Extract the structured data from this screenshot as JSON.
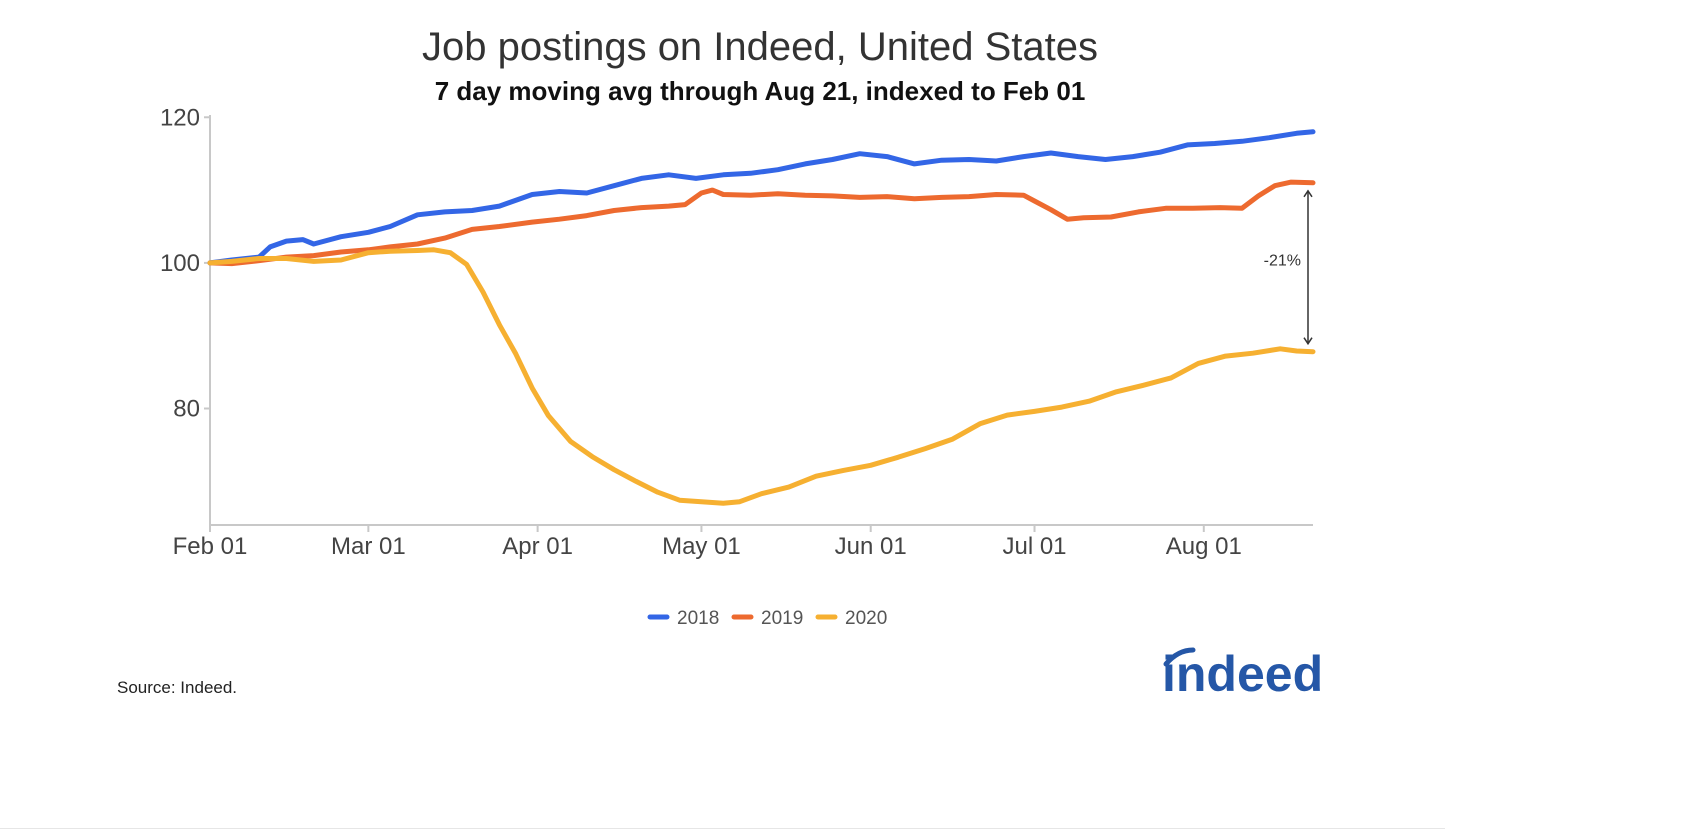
{
  "chart_data": {
    "type": "line",
    "title": "Job postings on Indeed, United States",
    "subtitle": "7 day moving avg through Aug 21, indexed to Feb 01",
    "x_ticks": [
      "Feb 01",
      "Mar 01",
      "Apr 01",
      "May 01",
      "Jun 01",
      "Jul 01",
      "Aug 01"
    ],
    "y_ticks": [
      "120",
      "100",
      "80"
    ],
    "xlim": [
      "Feb 01",
      "Aug 21"
    ],
    "ylim": [
      64,
      121
    ],
    "grid": false,
    "legend_position": "bottom-center",
    "annotation": {
      "text": "-21%",
      "x": "Aug 21",
      "from_series": "2019",
      "to_series": "2020"
    },
    "series": [
      {
        "name": "2018",
        "color": "#3366e6",
        "points": [
          [
            "Feb 01",
            100
          ],
          [
            "Feb 05",
            100.4
          ],
          [
            "Feb 10",
            100.8
          ],
          [
            "Feb 12",
            102.2
          ],
          [
            "Feb 15",
            103
          ],
          [
            "Feb 18",
            103.2
          ],
          [
            "Feb 20",
            102.6
          ],
          [
            "Feb 25",
            103.6
          ],
          [
            "Mar 01",
            104.2
          ],
          [
            "Mar 05",
            105
          ],
          [
            "Mar 10",
            106.6
          ],
          [
            "Mar 15",
            107
          ],
          [
            "Mar 20",
            107.2
          ],
          [
            "Mar 25",
            107.8
          ],
          [
            "Mar 31",
            109.4
          ],
          [
            "Apr 05",
            109.8
          ],
          [
            "Apr 10",
            109.6
          ],
          [
            "Apr 15",
            110.6
          ],
          [
            "Apr 20",
            111.6
          ],
          [
            "Apr 25",
            112.1
          ],
          [
            "Apr 30",
            111.6
          ],
          [
            "May 05",
            112.1
          ],
          [
            "May 10",
            112.3
          ],
          [
            "May 15",
            112.8
          ],
          [
            "May 20",
            113.6
          ],
          [
            "May 25",
            114.2
          ],
          [
            "May 30",
            115
          ],
          [
            "Jun 04",
            114.6
          ],
          [
            "Jun 09",
            113.6
          ],
          [
            "Jun 14",
            114.1
          ],
          [
            "Jun 19",
            114.2
          ],
          [
            "Jun 24",
            114
          ],
          [
            "Jun 29",
            114.6
          ],
          [
            "Jul 04",
            115.1
          ],
          [
            "Jul 09",
            114.6
          ],
          [
            "Jul 14",
            114.2
          ],
          [
            "Jul 19",
            114.6
          ],
          [
            "Jul 24",
            115.2
          ],
          [
            "Jul 29",
            116.2
          ],
          [
            "Aug 03",
            116.4
          ],
          [
            "Aug 08",
            116.7
          ],
          [
            "Aug 13",
            117.2
          ],
          [
            "Aug 18",
            117.8
          ],
          [
            "Aug 21",
            118
          ]
        ]
      },
      {
        "name": "2019",
        "color": "#ed6a2f",
        "points": [
          [
            "Feb 01",
            100
          ],
          [
            "Feb 05",
            99.9
          ],
          [
            "Feb 10",
            100.3
          ],
          [
            "Feb 15",
            100.8
          ],
          [
            "Feb 20",
            101
          ],
          [
            "Feb 25",
            101.5
          ],
          [
            "Mar 01",
            101.8
          ],
          [
            "Mar 05",
            102.2
          ],
          [
            "Mar 10",
            102.6
          ],
          [
            "Mar 15",
            103.4
          ],
          [
            "Mar 20",
            104.6
          ],
          [
            "Mar 25",
            105
          ],
          [
            "Mar 31",
            105.6
          ],
          [
            "Apr 05",
            106
          ],
          [
            "Apr 10",
            106.5
          ],
          [
            "Apr 15",
            107.2
          ],
          [
            "Apr 20",
            107.6
          ],
          [
            "Apr 25",
            107.8
          ],
          [
            "Apr 28",
            108
          ],
          [
            "May 01",
            109.6
          ],
          [
            "May 03",
            110
          ],
          [
            "May 05",
            109.4
          ],
          [
            "May 10",
            109.3
          ],
          [
            "May 15",
            109.5
          ],
          [
            "May 20",
            109.3
          ],
          [
            "May 25",
            109.2
          ],
          [
            "May 30",
            109
          ],
          [
            "Jun 04",
            109.1
          ],
          [
            "Jun 09",
            108.8
          ],
          [
            "Jun 14",
            109
          ],
          [
            "Jun 19",
            109.1
          ],
          [
            "Jun 24",
            109.4
          ],
          [
            "Jun 29",
            109.3
          ],
          [
            "Jul 01",
            108.5
          ],
          [
            "Jul 04",
            107.3
          ],
          [
            "Jul 07",
            106
          ],
          [
            "Jul 10",
            106.2
          ],
          [
            "Jul 15",
            106.3
          ],
          [
            "Jul 20",
            107
          ],
          [
            "Jul 25",
            107.5
          ],
          [
            "Jul 30",
            107.5
          ],
          [
            "Aug 04",
            107.6
          ],
          [
            "Aug 08",
            107.5
          ],
          [
            "Aug 11",
            109.2
          ],
          [
            "Aug 14",
            110.6
          ],
          [
            "Aug 17",
            111.1
          ],
          [
            "Aug 21",
            111
          ]
        ]
      },
      {
        "name": "2020",
        "color": "#f6b031",
        "points": [
          [
            "Feb 01",
            100
          ],
          [
            "Feb 05",
            100.2
          ],
          [
            "Feb 10",
            100.6
          ],
          [
            "Feb 15",
            100.6
          ],
          [
            "Feb 20",
            100.2
          ],
          [
            "Feb 25",
            100.4
          ],
          [
            "Mar 01",
            101.4
          ],
          [
            "Mar 05",
            101.6
          ],
          [
            "Mar 10",
            101.7
          ],
          [
            "Mar 13",
            101.8
          ],
          [
            "Mar 16",
            101.4
          ],
          [
            "Mar 19",
            99.8
          ],
          [
            "Mar 22",
            96
          ],
          [
            "Mar 25",
            91.5
          ],
          [
            "Mar 28",
            87.5
          ],
          [
            "Mar 31",
            82.8
          ],
          [
            "Apr 03",
            79
          ],
          [
            "Apr 07",
            75.5
          ],
          [
            "Apr 11",
            73.4
          ],
          [
            "Apr 15",
            71.6
          ],
          [
            "Apr 19",
            70
          ],
          [
            "Apr 23",
            68.5
          ],
          [
            "Apr 27",
            67.4
          ],
          [
            "May 01",
            67.2
          ],
          [
            "May 05",
            67
          ],
          [
            "May 08",
            67.2
          ],
          [
            "May 12",
            68.3
          ],
          [
            "May 17",
            69.2
          ],
          [
            "May 22",
            70.7
          ],
          [
            "May 27",
            71.5
          ],
          [
            "Jun 01",
            72.2
          ],
          [
            "Jun 06",
            73.3
          ],
          [
            "Jun 11",
            74.5
          ],
          [
            "Jun 16",
            75.8
          ],
          [
            "Jun 21",
            77.9
          ],
          [
            "Jun 26",
            79.1
          ],
          [
            "Jul 01",
            79.6
          ],
          [
            "Jul 06",
            80.2
          ],
          [
            "Jul 11",
            81
          ],
          [
            "Jul 16",
            82.3
          ],
          [
            "Jul 21",
            83.2
          ],
          [
            "Jul 26",
            84.2
          ],
          [
            "Jul 31",
            86.2
          ],
          [
            "Aug 05",
            87.2
          ],
          [
            "Aug 10",
            87.6
          ],
          [
            "Aug 15",
            88.2
          ],
          [
            "Aug 18",
            87.9
          ],
          [
            "Aug 21",
            87.8
          ]
        ]
      }
    ]
  },
  "footer": {
    "source_text": "Source: Indeed.",
    "logo_text": "indeed"
  }
}
